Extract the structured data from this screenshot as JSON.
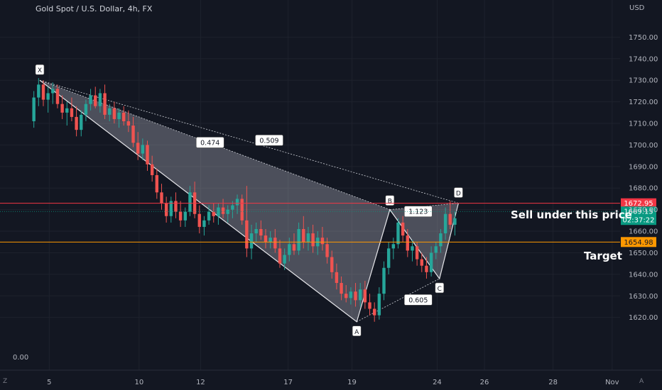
{
  "header": {
    "title": "Gold Spot / U.S. Dollar, 4h, FX",
    "currency": "USD"
  },
  "bottom_left_value": "0.00",
  "corners": {
    "left": "Z",
    "right": "A"
  },
  "notes": {
    "sell": "Sell under this price",
    "target": "Target"
  },
  "colors": {
    "background": "#131722",
    "up": "#26a69a",
    "down": "#ef5350",
    "sell_line": "#f23645",
    "target_line": "#ff9800",
    "current_badge": "#089981"
  },
  "chart_data": {
    "type": "candlestick",
    "title": "Gold Spot / U.S. Dollar, 4h, FX",
    "ylim": [
      1612,
      1760
    ],
    "yticks": [
      1620,
      1630,
      1640,
      1650,
      1660,
      1670,
      1680,
      1690,
      1700,
      1710,
      1720,
      1730,
      1740,
      1750
    ],
    "ytick_labels": [
      "1620.00",
      "1630.00",
      "1640.00",
      "1650.00",
      "1660.00",
      "1670.00",
      "1680.00",
      "1690.00",
      "1700.00",
      "1710.00",
      "1720.00",
      "1730.00",
      "1740.00",
      "1750.00"
    ],
    "xticks": [
      {
        "label": "5",
        "bar": 7
      },
      {
        "label": "10",
        "bar": 45
      },
      {
        "label": "12",
        "bar": 71
      },
      {
        "label": "17",
        "bar": 108
      },
      {
        "label": "19",
        "bar": 135
      },
      {
        "label": "24",
        "bar": 171
      },
      {
        "label": "26",
        "bar": 191
      },
      {
        "label": "28",
        "bar": 220
      },
      {
        "label": "Nov",
        "bar": 245
      }
    ],
    "bars_visible": 270,
    "candles": [
      [
        1711,
        1725,
        1708,
        1722
      ],
      [
        1722,
        1731,
        1718,
        1728
      ],
      [
        1728,
        1730,
        1718,
        1721
      ],
      [
        1721,
        1727,
        1715,
        1724
      ],
      [
        1724,
        1729,
        1719,
        1726
      ],
      [
        1726,
        1728,
        1717,
        1719
      ],
      [
        1719,
        1723,
        1712,
        1715
      ],
      [
        1715,
        1720,
        1709,
        1717
      ],
      [
        1717,
        1722,
        1711,
        1713
      ],
      [
        1713,
        1718,
        1704,
        1707
      ],
      [
        1707,
        1716,
        1704,
        1714
      ],
      [
        1714,
        1721,
        1711,
        1719
      ],
      [
        1719,
        1726,
        1716,
        1723
      ],
      [
        1723,
        1727,
        1717,
        1718
      ],
      [
        1718,
        1726,
        1715,
        1724
      ],
      [
        1724,
        1728,
        1712,
        1714
      ],
      [
        1714,
        1719,
        1711,
        1717
      ],
      [
        1717,
        1720,
        1710,
        1712
      ],
      [
        1712,
        1717,
        1708,
        1715
      ],
      [
        1715,
        1718,
        1709,
        1711
      ],
      [
        1711,
        1716,
        1706,
        1709
      ],
      [
        1709,
        1713,
        1699,
        1701
      ],
      [
        1701,
        1706,
        1693,
        1696
      ],
      [
        1696,
        1703,
        1693,
        1700
      ],
      [
        1700,
        1702,
        1688,
        1691
      ],
      [
        1691,
        1695,
        1683,
        1686
      ],
      [
        1686,
        1689,
        1675,
        1678
      ],
      [
        1678,
        1682,
        1670,
        1673
      ],
      [
        1673,
        1676,
        1664,
        1667
      ],
      [
        1667,
        1676,
        1664,
        1674
      ],
      [
        1674,
        1678,
        1666,
        1669
      ],
      [
        1669,
        1674,
        1662,
        1665
      ],
      [
        1665,
        1671,
        1662,
        1669
      ],
      [
        1669,
        1681,
        1667,
        1678
      ],
      [
        1678,
        1683,
        1666,
        1668
      ],
      [
        1668,
        1672,
        1659,
        1662
      ],
      [
        1662,
        1667,
        1658,
        1665
      ],
      [
        1665,
        1672,
        1663,
        1669
      ],
      [
        1669,
        1673,
        1664,
        1667
      ],
      [
        1667,
        1673,
        1663,
        1671
      ],
      [
        1671,
        1675,
        1666,
        1668
      ],
      [
        1668,
        1672,
        1664,
        1670
      ],
      [
        1670,
        1674,
        1666,
        1672
      ],
      [
        1672,
        1677,
        1668,
        1675
      ],
      [
        1675,
        1677,
        1663,
        1665
      ],
      [
        1665,
        1681,
        1648,
        1652
      ],
      [
        1652,
        1663,
        1647,
        1659
      ],
      [
        1659,
        1664,
        1655,
        1661
      ],
      [
        1661,
        1665,
        1656,
        1658
      ],
      [
        1658,
        1661,
        1652,
        1655
      ],
      [
        1655,
        1660,
        1652,
        1657
      ],
      [
        1657,
        1661,
        1650,
        1652
      ],
      [
        1652,
        1656,
        1643,
        1645
      ],
      [
        1645,
        1652,
        1642,
        1649
      ],
      [
        1649,
        1657,
        1646,
        1654
      ],
      [
        1654,
        1659,
        1649,
        1651
      ],
      [
        1651,
        1664,
        1649,
        1661
      ],
      [
        1661,
        1667,
        1652,
        1655
      ],
      [
        1655,
        1662,
        1651,
        1659
      ],
      [
        1659,
        1663,
        1650,
        1653
      ],
      [
        1653,
        1660,
        1649,
        1657
      ],
      [
        1657,
        1662,
        1651,
        1654
      ],
      [
        1654,
        1657,
        1645,
        1648
      ],
      [
        1648,
        1651,
        1638,
        1641
      ],
      [
        1641,
        1645,
        1633,
        1636
      ],
      [
        1636,
        1639,
        1628,
        1631
      ],
      [
        1631,
        1635,
        1627,
        1629
      ],
      [
        1629,
        1634,
        1626,
        1632
      ],
      [
        1632,
        1636,
        1625,
        1628
      ],
      [
        1628,
        1636,
        1625,
        1633
      ],
      [
        1633,
        1637,
        1624,
        1627
      ],
      [
        1627,
        1631,
        1621,
        1624
      ],
      [
        1624,
        1627,
        1618,
        1621
      ],
      [
        1621,
        1634,
        1619,
        1631
      ],
      [
        1631,
        1646,
        1628,
        1643
      ],
      [
        1643,
        1655,
        1640,
        1652
      ],
      [
        1652,
        1657,
        1647,
        1654
      ],
      [
        1654,
        1666,
        1652,
        1664
      ],
      [
        1664,
        1667,
        1655,
        1658
      ],
      [
        1658,
        1661,
        1648,
        1651
      ],
      [
        1651,
        1656,
        1646,
        1653
      ],
      [
        1653,
        1655,
        1644,
        1647
      ],
      [
        1647,
        1650,
        1641,
        1644
      ],
      [
        1644,
        1648,
        1638,
        1641
      ],
      [
        1641,
        1653,
        1639,
        1650
      ],
      [
        1650,
        1655,
        1647,
        1653
      ],
      [
        1653,
        1661,
        1650,
        1659
      ],
      [
        1659,
        1671,
        1656,
        1668
      ],
      [
        1668,
        1674,
        1661,
        1663
      ],
      [
        1663,
        1669,
        1658,
        1666
      ]
    ],
    "pattern": {
      "points": [
        {
          "label": "X",
          "bar": 3,
          "price": 1730
        },
        {
          "label": "A",
          "bar": 137,
          "price": 1618
        },
        {
          "label": "B",
          "bar": 151,
          "price": 1670
        },
        {
          "label": "C",
          "bar": 172,
          "price": 1638
        },
        {
          "label": "D",
          "bar": 180,
          "price": 1673
        }
      ],
      "ratios": [
        {
          "label": "0.474",
          "bar": 75,
          "price": 1701
        },
        {
          "label": "0.509",
          "bar": 100,
          "price": 1702
        },
        {
          "label": "1.123",
          "bar": 163,
          "price": 1669
        },
        {
          "label": "0.605",
          "bar": 163,
          "price": 1628
        }
      ]
    },
    "levels": [
      {
        "name": "sell",
        "price": 1672.95,
        "label": "1672.95"
      },
      {
        "name": "target",
        "price": 1654.98,
        "label": "1654.98"
      }
    ],
    "current": {
      "price": 1669.15,
      "label": "1669.15",
      "countdown": "02:37:22"
    }
  }
}
